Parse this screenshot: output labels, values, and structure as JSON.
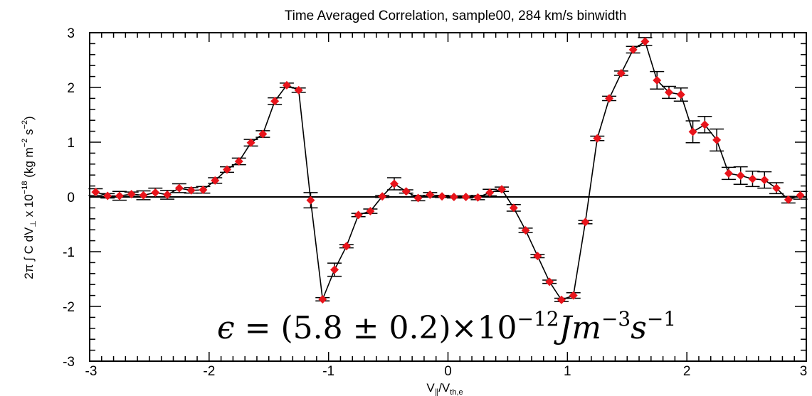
{
  "chart_data": {
    "type": "scatter",
    "title": "Time Averaged Correlation, sample00, 284 km/s binwidth",
    "xlabel": {
      "main": "V",
      "sub1": "∥",
      "mid": "/V",
      "sub2": "th,e"
    },
    "ylabel": {
      "p1": "2π ∫ C dV",
      "sub": "⊥",
      "p2": " x 10",
      "sup1": "−18",
      "p3": " (kg m",
      "sup2": "−2",
      "p4": " s",
      "sup3": "−2",
      "p5": ")"
    },
    "xlim": [
      -3,
      3
    ],
    "ylim": [
      -3,
      3
    ],
    "xticks": [
      -3,
      -2,
      -1,
      0,
      1,
      2,
      3
    ],
    "yticks": [
      -3,
      -2,
      -1,
      0,
      1,
      2,
      3
    ],
    "xtick_labels": [
      "-3",
      "-2",
      "-1",
      "0",
      "1",
      "2",
      "3"
    ],
    "ytick_labels": [
      "-3",
      "-2",
      "-1",
      "0",
      "1",
      "2",
      "3"
    ],
    "zero_line": true,
    "marker_color": "#e8141b",
    "line_color": "#000000",
    "annotation": {
      "eps": "ϵ",
      "eq": " = (5.8 ± 0.2)×10",
      "exp1": "−12",
      "unit_j": "Jm",
      "exp2": "−3",
      "unit_s": "s",
      "exp3": "−1"
    },
    "series": [
      {
        "x": [
          -2.95,
          -2.85,
          -2.75,
          -2.65,
          -2.55,
          -2.45,
          -2.35,
          -2.25,
          -2.15,
          -2.05,
          -1.95,
          -1.85,
          -1.75,
          -1.65,
          -1.55,
          -1.45,
          -1.35,
          -1.25,
          -1.15,
          -1.05,
          -0.95,
          -0.85,
          -0.75,
          -0.65,
          -0.55,
          -0.45,
          -0.35,
          -0.25,
          -0.15,
          -0.05,
          0.05,
          0.15,
          0.25,
          0.35,
          0.45,
          0.55,
          0.65,
          0.75,
          0.85,
          0.95,
          1.05,
          1.15,
          1.25,
          1.35,
          1.45,
          1.55,
          1.65,
          1.75,
          1.85,
          1.95,
          2.05,
          2.15,
          2.25,
          2.35,
          2.45,
          2.55,
          2.65,
          2.75,
          2.85,
          2.95
        ],
        "y": [
          0.09,
          0.02,
          0.02,
          0.05,
          0.03,
          0.08,
          0.04,
          0.16,
          0.12,
          0.13,
          0.3,
          0.5,
          0.65,
          0.99,
          1.15,
          1.75,
          2.04,
          1.95,
          -0.06,
          -1.87,
          -1.33,
          -0.9,
          -0.33,
          -0.26,
          0.01,
          0.24,
          0.1,
          -0.02,
          0.04,
          0.01,
          0.0,
          0.0,
          -0.01,
          0.08,
          0.14,
          -0.2,
          -0.61,
          -1.08,
          -1.55,
          -1.88,
          -1.8,
          -0.46,
          1.07,
          1.8,
          2.26,
          2.69,
          2.84,
          2.13,
          1.91,
          1.87,
          1.19,
          1.32,
          1.04,
          0.43,
          0.39,
          0.33,
          0.31,
          0.16,
          -0.05,
          0.03
        ],
        "yerr": [
          0.06,
          0.04,
          0.08,
          0.04,
          0.08,
          0.08,
          0.08,
          0.08,
          0.05,
          0.06,
          0.05,
          0.05,
          0.06,
          0.06,
          0.06,
          0.06,
          0.04,
          0.04,
          0.14,
          0.03,
          0.12,
          0.03,
          0.03,
          0.04,
          0.02,
          0.11,
          0.03,
          0.05,
          0.04,
          0.02,
          0.02,
          0.02,
          0.04,
          0.06,
          0.04,
          0.06,
          0.04,
          0.03,
          0.03,
          0.03,
          0.05,
          0.03,
          0.04,
          0.04,
          0.04,
          0.06,
          0.07,
          0.16,
          0.11,
          0.12,
          0.2,
          0.15,
          0.2,
          0.11,
          0.16,
          0.14,
          0.15,
          0.1,
          0.06,
          0.07
        ]
      }
    ]
  }
}
